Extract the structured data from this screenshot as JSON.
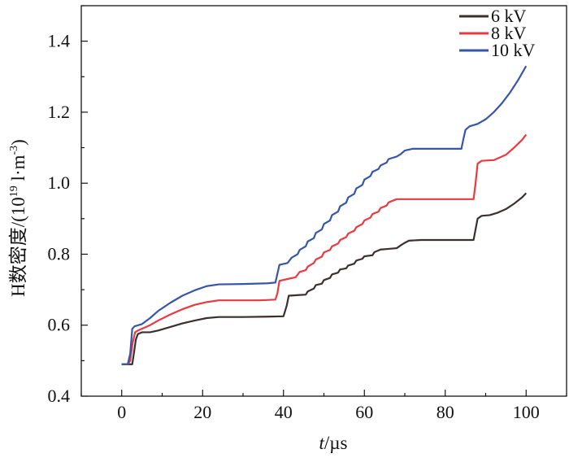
{
  "chart_data": {
    "type": "line",
    "title": "",
    "xlabel_italic": "t",
    "xlabel_unit": "/µs",
    "ylabel_main": "H数密度/(10",
    "ylabel_exp": "19",
    "ylabel_mid": " l·m",
    "ylabel_exp2": "-3",
    "ylabel_end": ")",
    "xlim": [
      -10,
      110
    ],
    "ylim": [
      0.4,
      1.5
    ],
    "xticks": [
      0,
      20,
      40,
      60,
      80,
      100
    ],
    "xtick_labels": [
      "0",
      "20",
      "40",
      "60",
      "80",
      "100"
    ],
    "yticks": [
      0.4,
      0.6,
      0.8,
      1.0,
      1.2,
      1.4
    ],
    "ytick_labels": [
      "0.4",
      "0.6",
      "0.8",
      "1.0",
      "1.2",
      "1.4"
    ],
    "legend_position": "top-right",
    "grid": false,
    "series": [
      {
        "name": "6 kV",
        "color": "#3a3030",
        "points": [
          [
            0,
            0.49
          ],
          [
            2,
            0.49
          ],
          [
            2.6,
            0.49
          ],
          [
            3,
            0.52
          ],
          [
            3.5,
            0.56
          ],
          [
            4,
            0.575
          ],
          [
            5,
            0.58
          ],
          [
            7,
            0.58
          ],
          [
            9,
            0.585
          ],
          [
            12,
            0.595
          ],
          [
            15,
            0.605
          ],
          [
            18,
            0.613
          ],
          [
            21,
            0.62
          ],
          [
            24,
            0.623
          ],
          [
            30,
            0.623
          ],
          [
            36,
            0.624
          ],
          [
            40,
            0.625
          ],
          [
            40.8,
            0.655
          ],
          [
            41.3,
            0.683
          ],
          [
            44,
            0.685
          ],
          [
            45.5,
            0.686
          ],
          [
            46,
            0.695
          ],
          [
            47.5,
            0.703
          ],
          [
            48,
            0.713
          ],
          [
            49.5,
            0.717
          ],
          [
            50,
            0.727
          ],
          [
            51.5,
            0.733
          ],
          [
            52,
            0.743
          ],
          [
            53.5,
            0.748
          ],
          [
            54,
            0.757
          ],
          [
            55.5,
            0.76
          ],
          [
            56,
            0.768
          ],
          [
            57.5,
            0.773
          ],
          [
            58,
            0.782
          ],
          [
            59.5,
            0.787
          ],
          [
            60,
            0.794
          ],
          [
            62,
            0.797
          ],
          [
            62.5,
            0.806
          ],
          [
            64,
            0.813
          ],
          [
            66,
            0.815
          ],
          [
            68,
            0.817
          ],
          [
            69,
            0.825
          ],
          [
            70,
            0.832
          ],
          [
            71,
            0.838
          ],
          [
            74,
            0.84
          ],
          [
            80,
            0.84
          ],
          [
            86,
            0.84
          ],
          [
            87,
            0.84
          ],
          [
            87.5,
            0.87
          ],
          [
            88,
            0.9
          ],
          [
            89,
            0.908
          ],
          [
            91,
            0.91
          ],
          [
            93,
            0.917
          ],
          [
            95,
            0.927
          ],
          [
            97,
            0.942
          ],
          [
            99,
            0.96
          ],
          [
            100,
            0.972
          ]
        ]
      },
      {
        "name": "8 kV",
        "color": "#e83a40",
        "points": [
          [
            0,
            0.49
          ],
          [
            1.5,
            0.49
          ],
          [
            2.1,
            0.5
          ],
          [
            2.7,
            0.55
          ],
          [
            3.3,
            0.58
          ],
          [
            4,
            0.585
          ],
          [
            5,
            0.59
          ],
          [
            7,
            0.6
          ],
          [
            9,
            0.613
          ],
          [
            12,
            0.63
          ],
          [
            15,
            0.645
          ],
          [
            18,
            0.657
          ],
          [
            21,
            0.665
          ],
          [
            24,
            0.67
          ],
          [
            28,
            0.67
          ],
          [
            34,
            0.67
          ],
          [
            38,
            0.672
          ],
          [
            38.5,
            0.69
          ],
          [
            39,
            0.725
          ],
          [
            41,
            0.73
          ],
          [
            43,
            0.735
          ],
          [
            44,
            0.75
          ],
          [
            45.5,
            0.755
          ],
          [
            46,
            0.765
          ],
          [
            47.5,
            0.775
          ],
          [
            48,
            0.785
          ],
          [
            49.5,
            0.793
          ],
          [
            50,
            0.805
          ],
          [
            51.5,
            0.812
          ],
          [
            52,
            0.822
          ],
          [
            53.5,
            0.83
          ],
          [
            54,
            0.84
          ],
          [
            55.5,
            0.848
          ],
          [
            56,
            0.858
          ],
          [
            57.5,
            0.866
          ],
          [
            58,
            0.876
          ],
          [
            59.5,
            0.885
          ],
          [
            60,
            0.895
          ],
          [
            61.5,
            0.903
          ],
          [
            62,
            0.913
          ],
          [
            63.5,
            0.92
          ],
          [
            64,
            0.93
          ],
          [
            65.5,
            0.937
          ],
          [
            66,
            0.946
          ],
          [
            68,
            0.955
          ],
          [
            72,
            0.955
          ],
          [
            80,
            0.955
          ],
          [
            87,
            0.955
          ],
          [
            87.5,
            1.0
          ],
          [
            88,
            1.055
          ],
          [
            89,
            1.063
          ],
          [
            92,
            1.065
          ],
          [
            95,
            1.08
          ],
          [
            97,
            1.1
          ],
          [
            99,
            1.122
          ],
          [
            100,
            1.137
          ]
        ]
      },
      {
        "name": "10 kV",
        "color": "#3656a8",
        "points": [
          [
            0,
            0.49
          ],
          [
            1.5,
            0.49
          ],
          [
            2.1,
            0.52
          ],
          [
            2.6,
            0.59
          ],
          [
            3.2,
            0.597
          ],
          [
            5,
            0.603
          ],
          [
            7,
            0.62
          ],
          [
            9,
            0.64
          ],
          [
            12,
            0.663
          ],
          [
            15,
            0.683
          ],
          [
            18,
            0.698
          ],
          [
            21,
            0.71
          ],
          [
            24,
            0.715
          ],
          [
            30,
            0.716
          ],
          [
            36,
            0.718
          ],
          [
            38,
            0.72
          ],
          [
            38.5,
            0.745
          ],
          [
            39,
            0.77
          ],
          [
            41,
            0.775
          ],
          [
            42,
            0.79
          ],
          [
            43.5,
            0.8
          ],
          [
            44,
            0.812
          ],
          [
            45.5,
            0.822
          ],
          [
            46,
            0.836
          ],
          [
            47.5,
            0.845
          ],
          [
            48,
            0.86
          ],
          [
            49.5,
            0.87
          ],
          [
            50,
            0.885
          ],
          [
            51.5,
            0.895
          ],
          [
            52,
            0.91
          ],
          [
            53.5,
            0.92
          ],
          [
            54,
            0.935
          ],
          [
            55.5,
            0.945
          ],
          [
            56,
            0.96
          ],
          [
            57.5,
            0.97
          ],
          [
            58,
            0.985
          ],
          [
            59.5,
            0.995
          ],
          [
            60,
            1.01
          ],
          [
            61.5,
            1.02
          ],
          [
            62,
            1.032
          ],
          [
            63.5,
            1.04
          ],
          [
            64,
            1.05
          ],
          [
            65.5,
            1.058
          ],
          [
            66,
            1.068
          ],
          [
            68,
            1.075
          ],
          [
            69,
            1.082
          ],
          [
            70,
            1.092
          ],
          [
            72,
            1.097
          ],
          [
            78,
            1.097
          ],
          [
            84,
            1.097
          ],
          [
            84.5,
            1.125
          ],
          [
            85,
            1.15
          ],
          [
            86,
            1.16
          ],
          [
            88,
            1.167
          ],
          [
            90,
            1.18
          ],
          [
            92,
            1.2
          ],
          [
            94,
            1.225
          ],
          [
            96,
            1.255
          ],
          [
            98,
            1.29
          ],
          [
            100,
            1.33
          ]
        ]
      }
    ]
  }
}
